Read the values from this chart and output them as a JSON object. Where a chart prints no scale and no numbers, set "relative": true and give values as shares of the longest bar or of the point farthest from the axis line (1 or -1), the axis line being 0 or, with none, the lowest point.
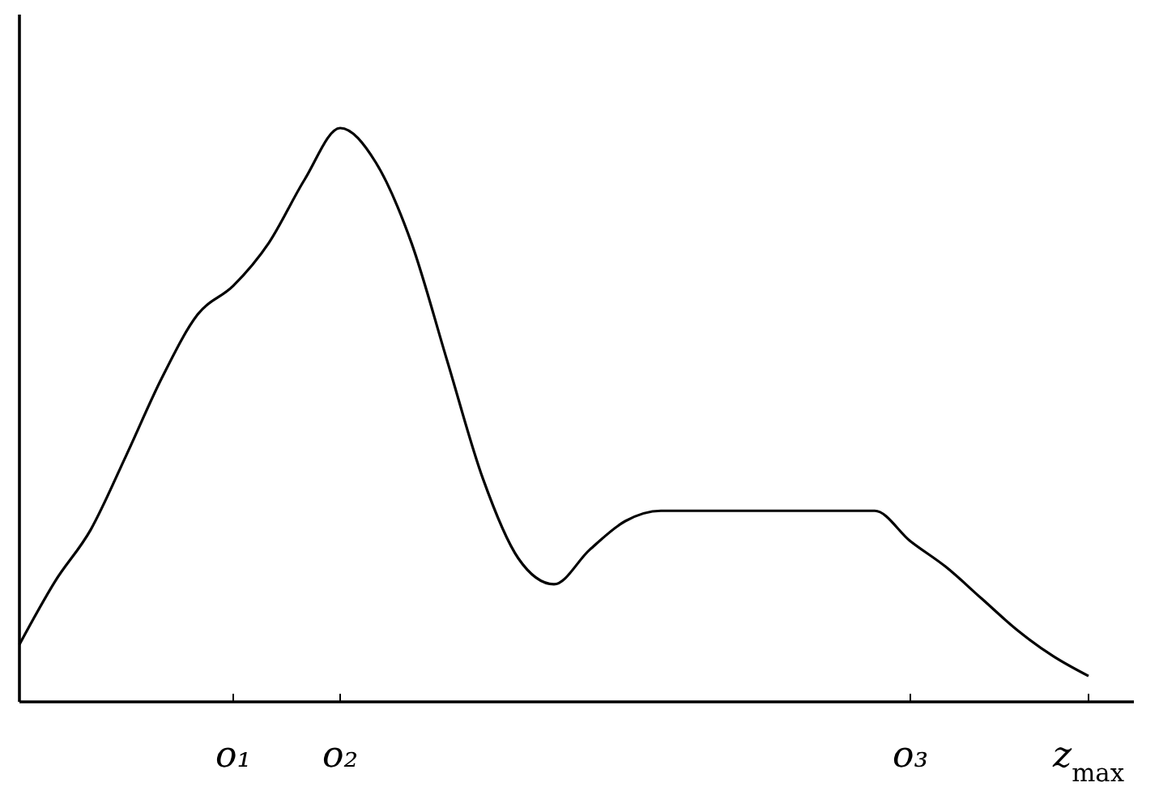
{
  "chart_data": {
    "type": "line",
    "relative": true,
    "color": "#000000",
    "categories": [
      null,
      null,
      null,
      null,
      null,
      null,
      "o₁",
      null,
      null,
      "o₂",
      null,
      null,
      null,
      null,
      null,
      null,
      null,
      null,
      null,
      null,
      null,
      null,
      null,
      null,
      null,
      "o₃",
      null,
      null,
      null,
      null,
      "z$_{max}$"
    ],
    "values": [
      0.1,
      0.21,
      0.3,
      0.43,
      0.565,
      0.675,
      0.725,
      0.8,
      0.91,
      1,
      0.94,
      0.8,
      0.595,
      0.39,
      0.25,
      0.205,
      0.265,
      0.315,
      0.333,
      0.333,
      0.333,
      0.333,
      0.333,
      0.333,
      0.333,
      0.28,
      0.235,
      0.18,
      0.125,
      0.08,
      0.045
    ]
  }
}
